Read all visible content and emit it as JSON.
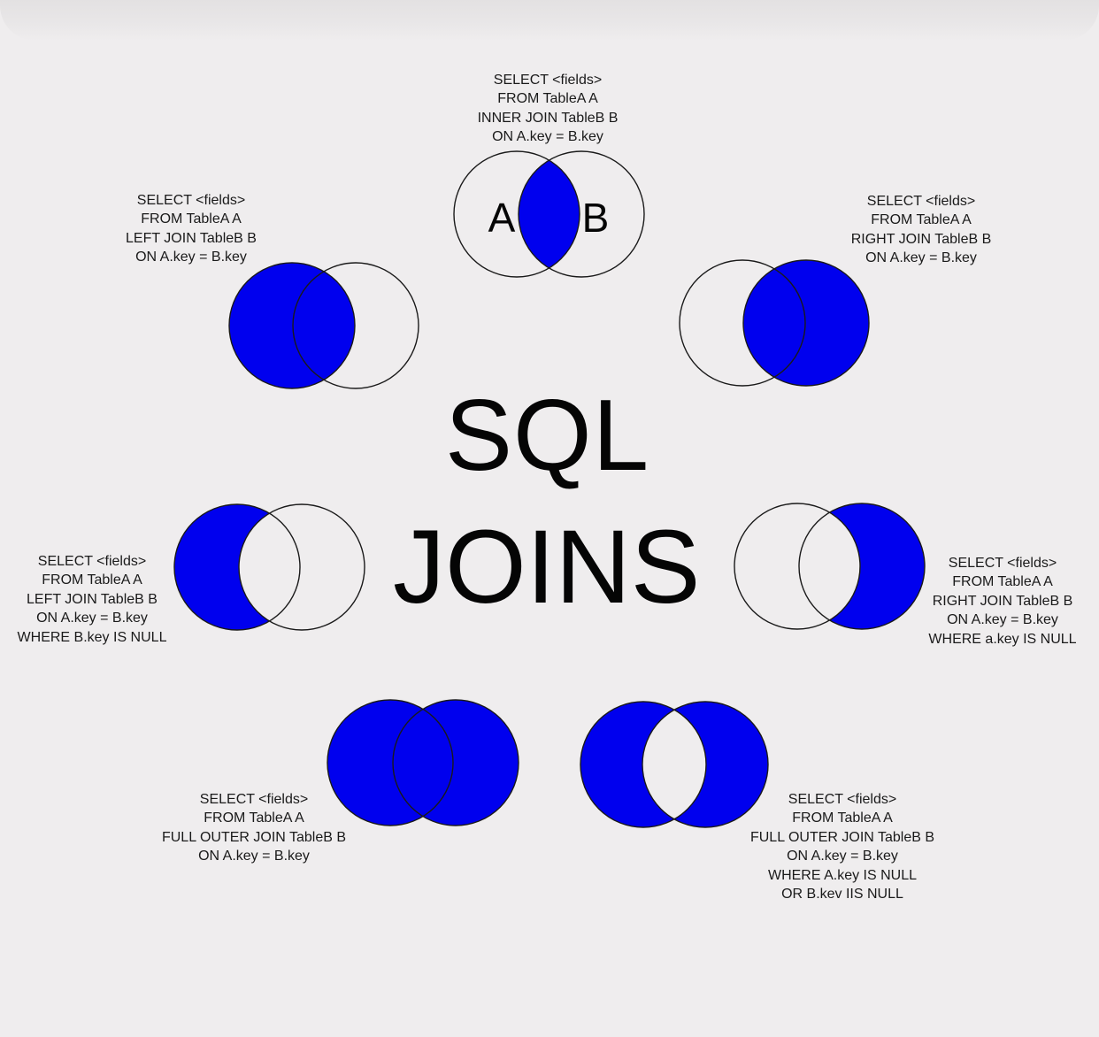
{
  "title": {
    "line1": "SQL",
    "line2": "JOINS"
  },
  "colors": {
    "fill": "#0000ee",
    "stroke": "#1a1a1a",
    "background": "#efedee"
  },
  "venn_labels": {
    "a": "A",
    "b": "B"
  },
  "diagrams": [
    {
      "id": "inner-join",
      "fill": "intersection",
      "query": [
        "SELECT <fields>",
        "FROM TableA  A",
        "INNER JOIN TableB  B",
        "ON A.key = B.key"
      ]
    },
    {
      "id": "left-join",
      "fill": "left",
      "query": [
        "SELECT <fields>",
        "FROM TableA  A",
        "LEFT JOIN TableB  B",
        "ON A.key = B.key"
      ]
    },
    {
      "id": "right-join",
      "fill": "right",
      "query": [
        "SELECT <fields>",
        "FROM TableA  A",
        "RIGHT JOIN TableB  B",
        "ON A.key = B.key"
      ]
    },
    {
      "id": "left-excluding-join",
      "fill": "left-only",
      "query": [
        "SELECT <fields>",
        "FROM TableA  A",
        "LEFT JOIN TableB  B",
        "ON A.key = B.key",
        "WHERE B.key IS NULL"
      ]
    },
    {
      "id": "right-excluding-join",
      "fill": "right-only",
      "query": [
        "SELECT <fields>",
        "FROM TableA  A",
        "RIGHT JOIN TableB  B",
        "ON A.key = B.key",
        "WHERE a.key IS NULL"
      ]
    },
    {
      "id": "full-outer-join",
      "fill": "both",
      "query": [
        "SELECT <fields>",
        "FROM TableA  A",
        "FULL OUTER JOIN TableB  B",
        "ON A.key = B.key"
      ]
    },
    {
      "id": "full-outer-excluding-join",
      "fill": "symmetric-difference",
      "query": [
        "SELECT <fields>",
        "FROM TableA  A",
        "FULL OUTER JOIN TableB  B",
        "ON A.key = B.key",
        "WHERE A.key IS NULL",
        "OR B.kev IIS NULL"
      ]
    }
  ]
}
